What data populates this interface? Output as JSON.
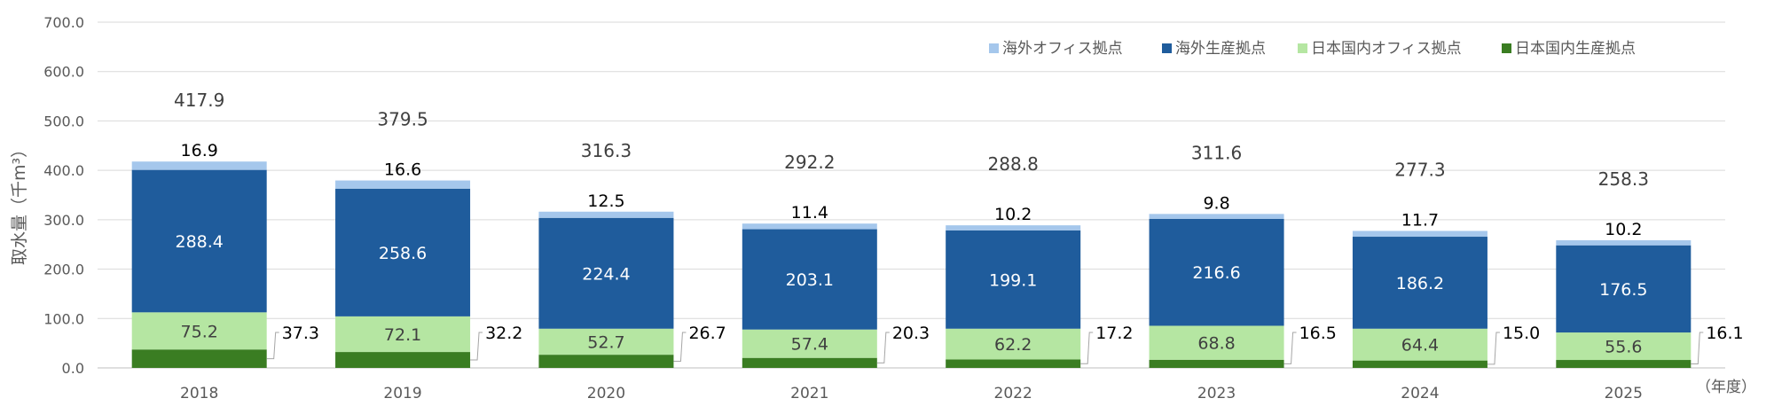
{
  "chart_data": {
    "type": "bar",
    "stacked": true,
    "ylabel": "取水量（千m³）",
    "xunit": "（年度）",
    "ylim": [
      0,
      700
    ],
    "yticks": [
      "0.0",
      "100.0",
      "200.0",
      "300.0",
      "400.0",
      "500.0",
      "600.0",
      "700.0"
    ],
    "grid": true,
    "legend_position": "top-right",
    "categories": [
      "2018",
      "2019",
      "2020",
      "2021",
      "2022",
      "2023",
      "2024",
      "2025"
    ],
    "totals": [
      "417.9",
      "379.5",
      "316.3",
      "292.2",
      "288.8",
      "311.6",
      "277.3",
      "258.3"
    ],
    "series": [
      {
        "name": "日本国内生産拠点",
        "color": "#3a7d22",
        "values": [
          37.3,
          32.2,
          26.7,
          20.3,
          17.2,
          16.5,
          15.0,
          16.1
        ],
        "labels": [
          "37.3",
          "32.2",
          "26.7",
          "20.3",
          "17.2",
          "16.5",
          "15.0",
          "16.1"
        ]
      },
      {
        "name": "日本国内オフィス拠点",
        "color": "#b5e6a2",
        "values": [
          75.2,
          72.1,
          52.7,
          57.4,
          62.2,
          68.8,
          64.4,
          55.6
        ],
        "labels": [
          "75.2",
          "72.1",
          "52.7",
          "57.4",
          "62.2",
          "68.8",
          "64.4",
          "55.6"
        ]
      },
      {
        "name": "海外生産拠点",
        "color": "#1f5c9c",
        "values": [
          288.4,
          258.6,
          224.4,
          203.1,
          199.1,
          216.6,
          186.2,
          176.5
        ],
        "labels": [
          "288.4",
          "258.6",
          "224.4",
          "203.1",
          "199.1",
          "216.6",
          "186.2",
          "176.5"
        ]
      },
      {
        "name": "海外オフィス拠点",
        "color": "#a5c7ec",
        "values": [
          16.9,
          16.6,
          12.5,
          11.4,
          10.2,
          9.8,
          11.7,
          10.2
        ],
        "labels": [
          "16.9",
          "16.6",
          "12.5",
          "11.4",
          "10.2",
          "9.8",
          "11.7",
          "10.2"
        ]
      }
    ],
    "legend_order": [
      "海外オフィス拠点",
      "海外生産拠点",
      "日本国内オフィス拠点",
      "日本国内生産拠点"
    ],
    "colors": {
      "axis_text": "#595959",
      "grid": "#d9d9d9",
      "label_dark": "#000000",
      "label_light": "#ffffff",
      "total_text": "#404040"
    }
  }
}
